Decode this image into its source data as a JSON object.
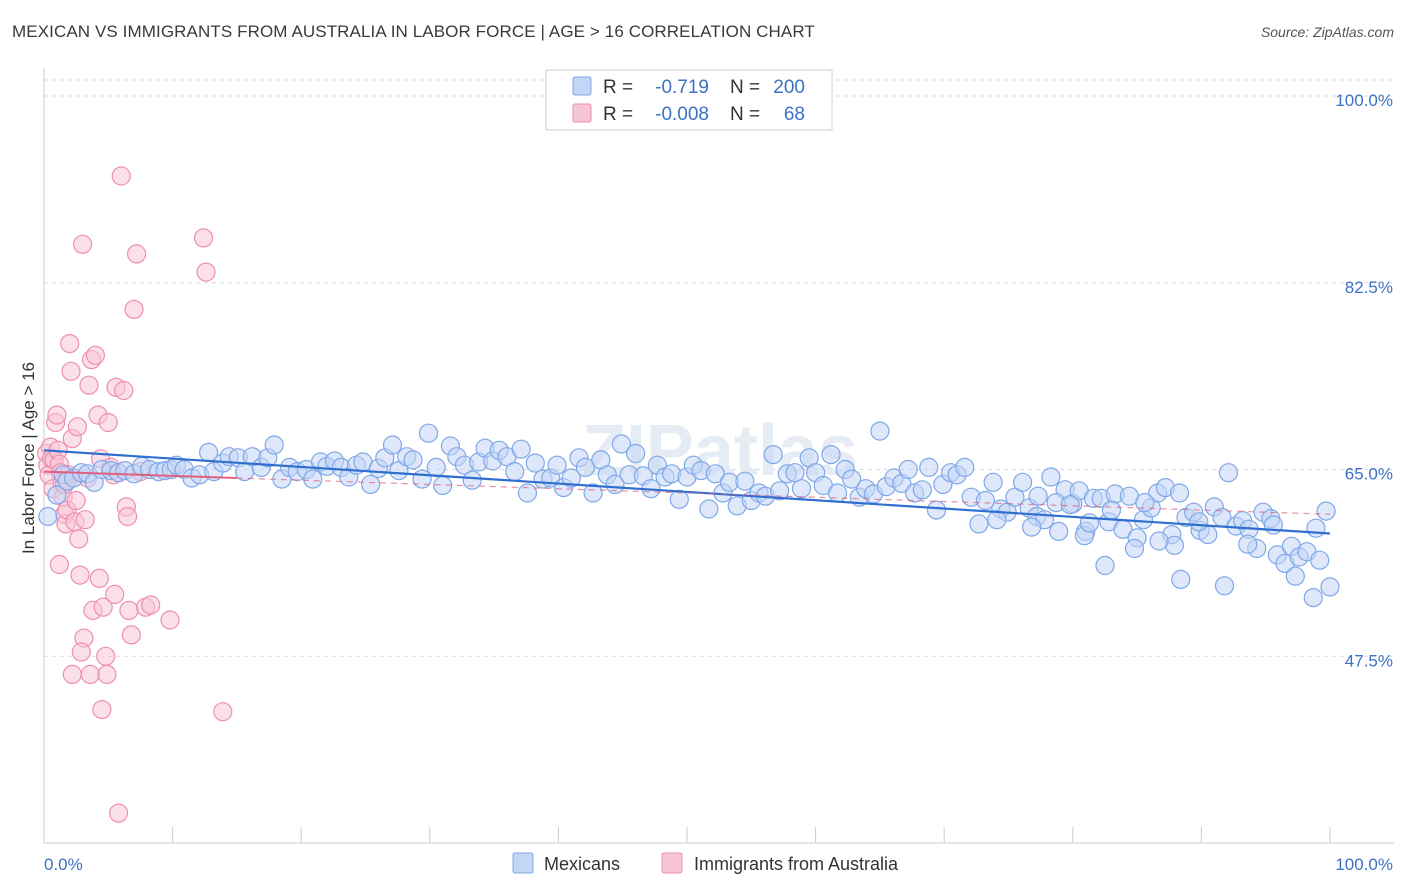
{
  "header": {
    "title": "MEXICAN VS IMMIGRANTS FROM AUSTRALIA IN LABOR FORCE | AGE > 16 CORRELATION CHART",
    "source": "Source: ZipAtlas.com"
  },
  "colors": {
    "blue": "#7fa8e8",
    "blue_fill": "#c3d6f5",
    "blue_line": "#2f6fcf",
    "pink": "#ee8fb0",
    "pink_fill": "#f7c6d6",
    "pink_line": "#e0607f",
    "accent_text": "#3b72c4",
    "grid": "#d9d9d9"
  },
  "legend": {
    "rows": [
      {
        "r_label": "R =",
        "r_value": "-0.719",
        "n_label": "N =",
        "n_value": "200",
        "series": "blue"
      },
      {
        "r_label": "R =",
        "r_value": "-0.008",
        "n_label": "N =",
        "n_value": "68",
        "series": "pink"
      }
    ]
  },
  "bottom_legend": {
    "items": [
      {
        "label": "Mexicans",
        "series": "blue"
      },
      {
        "label": "Immigrants from Australia",
        "series": "pink"
      }
    ]
  },
  "watermark": "ZIPatlas",
  "chart_data": {
    "type": "scatter",
    "ylabel": "In Labor Force | Age > 16",
    "xlabel": "",
    "x_tick_labels": [
      "0.0%",
      "100.0%"
    ],
    "y_tick_labels": [
      "100.0%",
      "82.5%",
      "65.0%",
      "47.5%"
    ],
    "y_ticks": [
      100.0,
      82.5,
      65.0,
      47.5
    ],
    "xlim": [
      0,
      100
    ],
    "ylim": [
      30,
      101.5
    ],
    "grid": true,
    "legend_position": "top-center",
    "series": [
      {
        "name": "Mexicans",
        "color": "blue",
        "trend": {
          "x": [
            0,
            100
          ],
          "y": [
            66.8,
            59.0
          ]
        },
        "points": [
          [
            0.3,
            60.6
          ],
          [
            1.0,
            62.6
          ],
          [
            1.5,
            64.5
          ],
          [
            1.8,
            63.9
          ],
          [
            2.3,
            64.2
          ],
          [
            2.9,
            64.7
          ],
          [
            3.4,
            64.6
          ],
          [
            3.9,
            63.8
          ],
          [
            4.5,
            65.0
          ],
          [
            5.2,
            64.9
          ],
          [
            5.8,
            64.7
          ],
          [
            6.3,
            64.9
          ],
          [
            7.0,
            64.6
          ],
          [
            7.6,
            65.3
          ],
          [
            8.2,
            65.0
          ],
          [
            8.9,
            64.8
          ],
          [
            9.4,
            64.9
          ],
          [
            9.9,
            65.0
          ],
          [
            10.3,
            65.4
          ],
          [
            10.9,
            65.0
          ],
          [
            11.5,
            64.2
          ],
          [
            12.1,
            64.5
          ],
          [
            12.8,
            66.6
          ],
          [
            13.2,
            64.8
          ],
          [
            13.9,
            65.6
          ],
          [
            14.4,
            66.2
          ],
          [
            15.1,
            66.1
          ],
          [
            15.6,
            64.8
          ],
          [
            16.2,
            66.2
          ],
          [
            16.9,
            65.2
          ],
          [
            17.4,
            66.1
          ],
          [
            17.9,
            67.3
          ],
          [
            18.5,
            64.1
          ],
          [
            19.1,
            65.2
          ],
          [
            19.7,
            64.8
          ],
          [
            20.4,
            65.0
          ],
          [
            20.9,
            64.1
          ],
          [
            21.5,
            65.7
          ],
          [
            22.0,
            65.3
          ],
          [
            22.6,
            65.8
          ],
          [
            23.1,
            65.2
          ],
          [
            23.7,
            64.3
          ],
          [
            24.3,
            65.4
          ],
          [
            24.8,
            65.7
          ],
          [
            25.4,
            63.6
          ],
          [
            26.0,
            65.1
          ],
          [
            26.5,
            66.1
          ],
          [
            27.1,
            67.3
          ],
          [
            27.6,
            64.9
          ],
          [
            28.2,
            66.2
          ],
          [
            28.7,
            65.9
          ],
          [
            29.4,
            64.1
          ],
          [
            29.9,
            68.4
          ],
          [
            30.5,
            65.2
          ],
          [
            31.0,
            63.5
          ],
          [
            31.6,
            67.2
          ],
          [
            32.1,
            66.2
          ],
          [
            32.7,
            65.4
          ],
          [
            33.3,
            64.0
          ],
          [
            33.8,
            65.7
          ],
          [
            34.3,
            67.0
          ],
          [
            34.9,
            65.8
          ],
          [
            35.4,
            66.8
          ],
          [
            36.0,
            66.2
          ],
          [
            36.6,
            64.8
          ],
          [
            37.1,
            66.9
          ],
          [
            37.6,
            62.8
          ],
          [
            38.2,
            65.6
          ],
          [
            38.8,
            64.1
          ],
          [
            39.4,
            64.2
          ],
          [
            39.9,
            65.4
          ],
          [
            40.4,
            63.3
          ],
          [
            41.0,
            64.2
          ],
          [
            41.6,
            66.1
          ],
          [
            42.1,
            65.2
          ],
          [
            42.7,
            62.8
          ],
          [
            43.3,
            65.9
          ],
          [
            43.8,
            64.5
          ],
          [
            44.4,
            63.6
          ],
          [
            44.9,
            67.4
          ],
          [
            45.5,
            64.5
          ],
          [
            46.0,
            66.5
          ],
          [
            46.6,
            64.4
          ],
          [
            47.2,
            63.2
          ],
          [
            47.7,
            65.4
          ],
          [
            48.3,
            64.3
          ],
          [
            48.8,
            64.6
          ],
          [
            49.4,
            62.2
          ],
          [
            50.0,
            64.3
          ],
          [
            50.5,
            65.4
          ],
          [
            51.1,
            64.9
          ],
          [
            51.7,
            61.3
          ],
          [
            52.2,
            64.6
          ],
          [
            52.8,
            62.8
          ],
          [
            53.3,
            63.8
          ],
          [
            53.9,
            61.6
          ],
          [
            54.5,
            63.9
          ],
          [
            55.0,
            62.1
          ],
          [
            55.6,
            62.8
          ],
          [
            56.1,
            62.5
          ],
          [
            56.7,
            66.4
          ],
          [
            57.2,
            63.0
          ],
          [
            57.8,
            64.6
          ],
          [
            58.4,
            64.7
          ],
          [
            58.9,
            63.2
          ],
          [
            59.5,
            66.1
          ],
          [
            60.0,
            64.7
          ],
          [
            60.6,
            63.5
          ],
          [
            61.2,
            66.4
          ],
          [
            61.7,
            62.8
          ],
          [
            62.3,
            65.0
          ],
          [
            62.8,
            64.1
          ],
          [
            63.4,
            62.4
          ],
          [
            63.9,
            63.2
          ],
          [
            64.5,
            62.7
          ],
          [
            65.0,
            68.6
          ],
          [
            65.5,
            63.4
          ],
          [
            66.1,
            64.2
          ],
          [
            66.7,
            63.7
          ],
          [
            67.2,
            65.0
          ],
          [
            67.7,
            62.8
          ],
          [
            68.3,
            63.1
          ],
          [
            68.8,
            65.2
          ],
          [
            69.4,
            61.2
          ],
          [
            69.9,
            63.6
          ],
          [
            70.5,
            64.7
          ],
          [
            71.0,
            64.5
          ],
          [
            71.6,
            65.2
          ],
          [
            72.1,
            62.4
          ],
          [
            72.7,
            59.9
          ],
          [
            73.2,
            62.1
          ],
          [
            73.8,
            63.8
          ],
          [
            74.4,
            61.3
          ],
          [
            74.9,
            61.0
          ],
          [
            75.5,
            62.4
          ],
          [
            76.1,
            63.8
          ],
          [
            76.6,
            61.4
          ],
          [
            77.2,
            60.6
          ],
          [
            77.8,
            60.3
          ],
          [
            78.3,
            64.3
          ],
          [
            78.9,
            59.2
          ],
          [
            79.4,
            63.1
          ],
          [
            80.0,
            61.8
          ],
          [
            80.5,
            63.0
          ],
          [
            81.0,
            59.2
          ],
          [
            81.6,
            62.3
          ],
          [
            82.2,
            62.3
          ],
          [
            82.8,
            60.1
          ],
          [
            83.3,
            62.7
          ],
          [
            83.9,
            59.4
          ],
          [
            84.4,
            62.5
          ],
          [
            85.0,
            58.6
          ],
          [
            85.5,
            60.3
          ],
          [
            86.1,
            61.4
          ],
          [
            86.6,
            62.8
          ],
          [
            87.2,
            63.3
          ],
          [
            87.7,
            58.9
          ],
          [
            88.3,
            62.8
          ],
          [
            88.8,
            60.5
          ],
          [
            89.4,
            61.0
          ],
          [
            89.9,
            59.3
          ],
          [
            90.5,
            58.9
          ],
          [
            91.0,
            61.5
          ],
          [
            91.6,
            60.5
          ],
          [
            92.1,
            64.7
          ],
          [
            92.7,
            59.7
          ],
          [
            93.2,
            60.2
          ],
          [
            93.7,
            59.4
          ],
          [
            94.3,
            57.6
          ],
          [
            94.8,
            61.0
          ],
          [
            95.4,
            60.4
          ],
          [
            95.9,
            57.0
          ],
          [
            96.5,
            56.2
          ],
          [
            97.0,
            57.8
          ],
          [
            97.6,
            56.8
          ],
          [
            98.2,
            57.3
          ],
          [
            98.7,
            53.0
          ],
          [
            99.2,
            56.5
          ],
          [
            99.7,
            61.1
          ],
          [
            100.0,
            54.0
          ],
          [
            74.1,
            60.3
          ],
          [
            76.8,
            59.6
          ],
          [
            78.7,
            61.9
          ],
          [
            80.9,
            58.8
          ],
          [
            82.5,
            56.0
          ],
          [
            84.8,
            57.6
          ],
          [
            87.9,
            57.9
          ],
          [
            89.8,
            60.1
          ],
          [
            91.8,
            54.1
          ],
          [
            93.6,
            58.0
          ],
          [
            95.6,
            59.8
          ],
          [
            97.3,
            55.0
          ],
          [
            98.9,
            59.5
          ],
          [
            88.4,
            54.7
          ],
          [
            86.7,
            58.3
          ],
          [
            85.6,
            61.9
          ],
          [
            83.0,
            61.2
          ],
          [
            81.3,
            60.0
          ],
          [
            79.8,
            61.7
          ],
          [
            77.3,
            62.5
          ]
        ]
      },
      {
        "name": "Immigrants from Australia",
        "color": "pink",
        "trend": {
          "x": [
            0,
            15
          ],
          "y": [
            64.8,
            64.2
          ]
        },
        "points": [
          [
            0.2,
            66.5
          ],
          [
            0.3,
            65.4
          ],
          [
            0.4,
            64.5
          ],
          [
            0.5,
            67.1
          ],
          [
            0.6,
            66.0
          ],
          [
            0.7,
            63.2
          ],
          [
            0.8,
            65.9
          ],
          [
            0.9,
            69.4
          ],
          [
            1.0,
            70.1
          ],
          [
            1.1,
            66.8
          ],
          [
            1.2,
            65.5
          ],
          [
            1.3,
            64.7
          ],
          [
            1.4,
            63.8
          ],
          [
            1.5,
            62.4
          ],
          [
            1.6,
            60.8
          ],
          [
            1.7,
            59.9
          ],
          [
            1.8,
            61.2
          ],
          [
            1.9,
            64.5
          ],
          [
            2.0,
            76.8
          ],
          [
            2.1,
            74.2
          ],
          [
            2.2,
            67.9
          ],
          [
            2.3,
            64.2
          ],
          [
            2.4,
            60.1
          ],
          [
            2.5,
            62.1
          ],
          [
            2.6,
            69.0
          ],
          [
            2.7,
            58.5
          ],
          [
            2.8,
            55.1
          ],
          [
            3.0,
            86.1
          ],
          [
            3.2,
            60.3
          ],
          [
            3.4,
            64.2
          ],
          [
            3.5,
            72.9
          ],
          [
            3.7,
            75.3
          ],
          [
            3.8,
            51.8
          ],
          [
            4.0,
            75.7
          ],
          [
            4.2,
            70.1
          ],
          [
            4.4,
            66.0
          ],
          [
            4.5,
            42.5
          ],
          [
            4.6,
            52.1
          ],
          [
            4.8,
            47.5
          ],
          [
            5.0,
            69.4
          ],
          [
            5.2,
            65.2
          ],
          [
            5.4,
            64.5
          ],
          [
            5.6,
            72.7
          ],
          [
            5.8,
            32.8
          ],
          [
            6.0,
            92.5
          ],
          [
            6.2,
            72.4
          ],
          [
            6.4,
            61.5
          ],
          [
            6.6,
            51.8
          ],
          [
            6.8,
            49.5
          ],
          [
            7.0,
            80.0
          ],
          [
            7.2,
            85.2
          ],
          [
            7.5,
            64.8
          ],
          [
            7.9,
            52.1
          ],
          [
            8.3,
            52.3
          ],
          [
            9.8,
            50.9
          ],
          [
            12.4,
            86.7
          ],
          [
            12.6,
            83.5
          ],
          [
            13.9,
            42.3
          ],
          [
            1.2,
            56.1
          ],
          [
            2.2,
            45.8
          ],
          [
            3.1,
            49.2
          ],
          [
            3.6,
            45.8
          ],
          [
            4.3,
            54.8
          ],
          [
            4.9,
            45.8
          ],
          [
            5.5,
            53.3
          ],
          [
            6.5,
            60.6
          ],
          [
            2.9,
            47.9
          ],
          [
            1.6,
            63.6
          ]
        ]
      }
    ]
  }
}
